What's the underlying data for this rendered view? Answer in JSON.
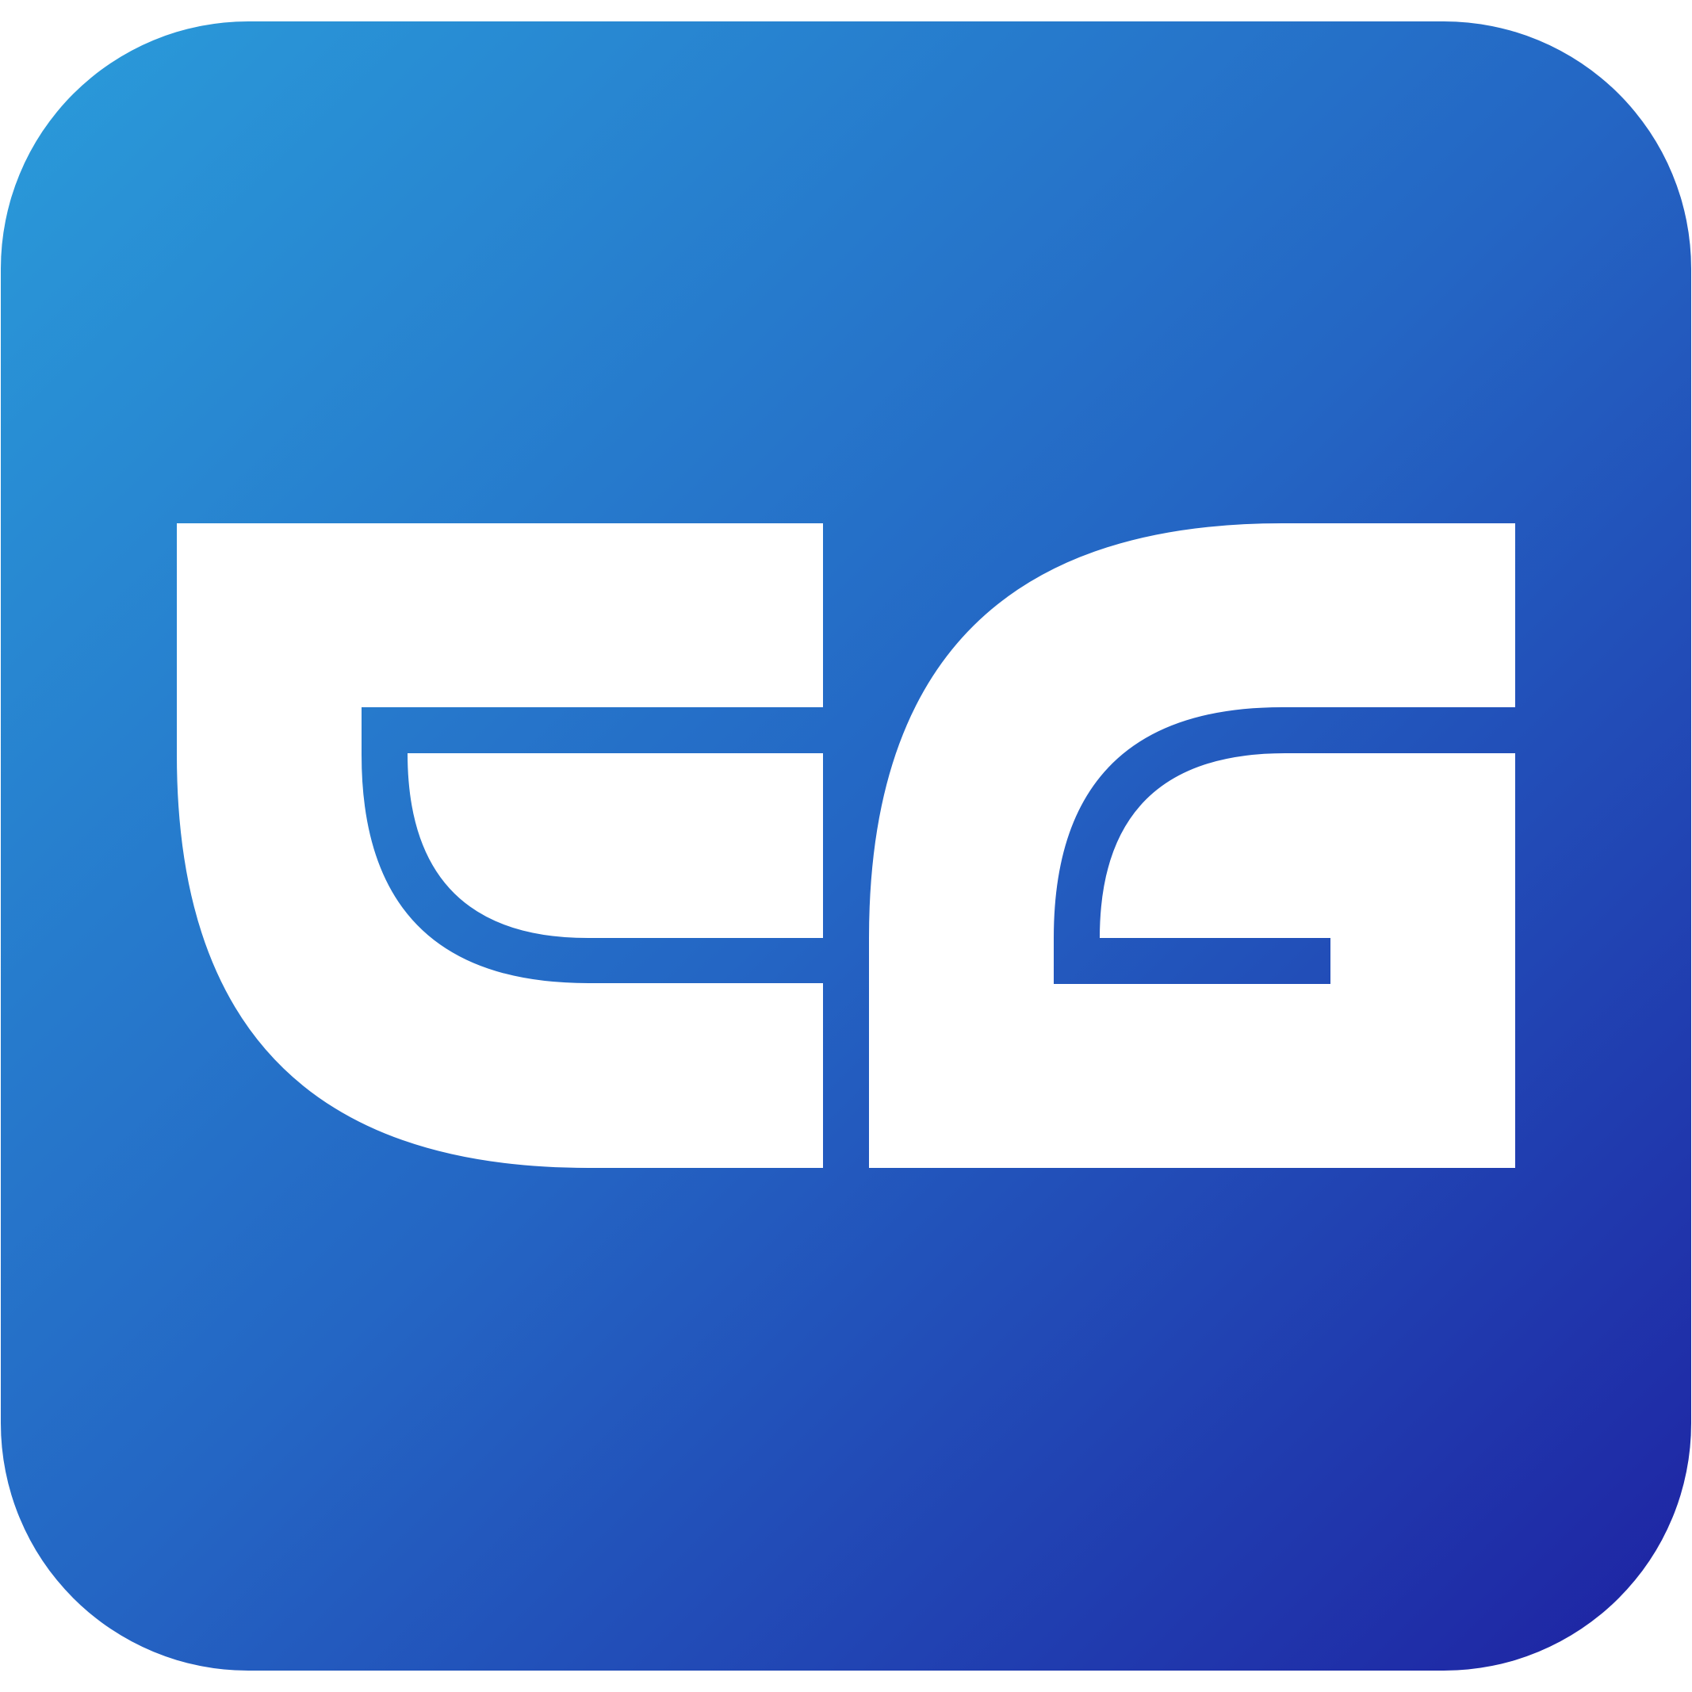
{
  "logo": {
    "text": "EG",
    "icon": "eg-logo-icon",
    "colors": {
      "gradient_start": "#2A9CDA",
      "gradient_mid": "#2466C4",
      "gradient_end": "#1E22A2",
      "glyph": "#FFFFFF"
    }
  }
}
